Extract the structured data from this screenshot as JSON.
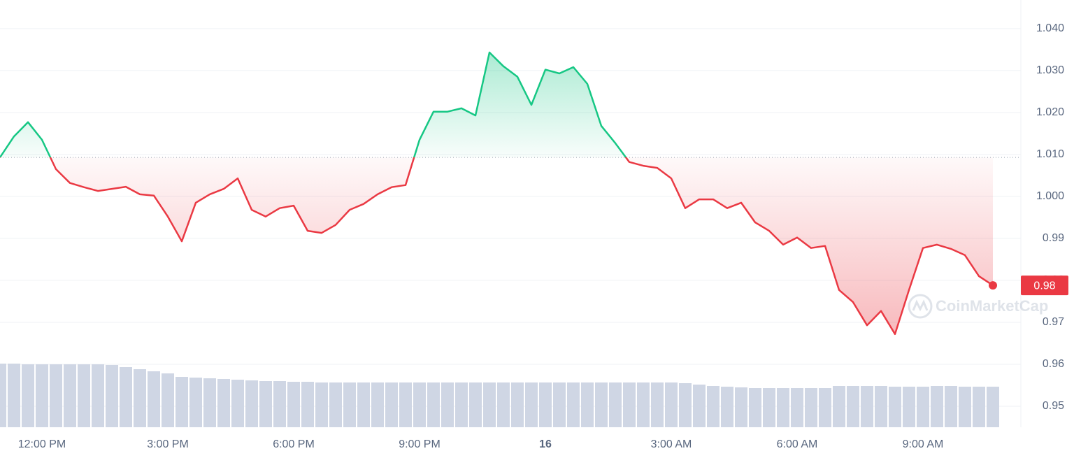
{
  "chart_data": {
    "type": "line",
    "x": [
      "11:00 AM",
      "11:20 AM",
      "11:40 AM",
      "12:00 PM",
      "12:20 PM",
      "12:40 PM",
      "1:00 PM",
      "1:20 PM",
      "1:40 PM",
      "2:00 PM",
      "2:20 PM",
      "2:40 PM",
      "3:00 PM",
      "3:20 PM",
      "3:40 PM",
      "4:00 PM",
      "4:20 PM",
      "4:40 PM",
      "5:00 PM",
      "5:20 PM",
      "5:40 PM",
      "6:00 PM",
      "6:20 PM",
      "6:40 PM",
      "7:00 PM",
      "7:20 PM",
      "7:40 PM",
      "8:00 PM",
      "8:20 PM",
      "8:40 PM",
      "9:00 PM",
      "9:20 PM",
      "9:40 PM",
      "10:00 PM",
      "10:20 PM",
      "10:40 PM",
      "11:00 PM",
      "11:20 PM",
      "11:40 PM",
      "12:00 AM",
      "12:20 AM",
      "12:40 AM",
      "1:00 AM",
      "1:20 AM",
      "1:40 AM",
      "2:00 AM",
      "2:20 AM",
      "2:40 AM",
      "3:00 AM",
      "3:20 AM",
      "3:40 AM",
      "4:00 AM",
      "4:20 AM",
      "4:40 AM",
      "5:00 AM",
      "5:20 AM",
      "5:40 AM",
      "6:00 AM",
      "6:20 AM",
      "6:40 AM",
      "7:00 AM",
      "7:20 AM",
      "7:40 AM",
      "8:00 AM",
      "8:20 AM",
      "8:40 AM",
      "9:00 AM",
      "9:20 AM",
      "9:40 AM",
      "10:00 AM",
      "10:20 AM",
      "10:40 AM"
    ],
    "values": [
      1.0093,
      1.0143,
      1.0177,
      1.0135,
      1.0065,
      1.0032,
      1.0022,
      1.0013,
      1.0018,
      1.0023,
      1.0005,
      1.0002,
      0.9952,
      0.9893,
      0.9985,
      1.0005,
      1.0018,
      1.0043,
      0.9968,
      0.9952,
      0.9972,
      0.9978,
      0.9918,
      0.9913,
      0.9932,
      0.9968,
      0.9982,
      1.0005,
      1.0022,
      1.0027,
      1.0135,
      1.0202,
      1.0202,
      1.021,
      1.0193,
      1.0343,
      1.031,
      1.0285,
      1.0218,
      1.0302,
      1.0293,
      1.0308,
      1.0268,
      1.0168,
      1.0127,
      1.0082,
      1.0073,
      1.0068,
      1.0043,
      0.9972,
      0.9993,
      0.9993,
      0.9972,
      0.9985,
      0.9938,
      0.9918,
      0.9885,
      0.9902,
      0.9877,
      0.9882,
      0.9777,
      0.9748,
      0.9693,
      0.9727,
      0.9672,
      0.9777,
      0.9877,
      0.9885,
      0.9875,
      0.986,
      0.981,
      0.9788
    ],
    "volume": [
      91,
      91,
      90,
      90,
      90,
      90,
      90,
      90,
      89,
      86,
      83,
      80,
      77,
      72,
      71,
      70,
      69,
      68,
      67,
      66,
      66,
      65,
      65,
      64,
      64,
      64,
      64,
      64,
      64,
      64,
      64,
      64,
      64,
      64,
      64,
      64,
      64,
      64,
      64,
      64,
      64,
      64,
      64,
      64,
      64,
      64,
      64,
      64,
      64,
      63,
      61,
      59,
      58,
      57,
      56,
      56,
      56,
      56,
      56,
      56,
      59,
      59,
      59,
      59,
      58,
      58,
      58,
      59,
      59,
      58,
      58,
      58
    ],
    "baseline": 1.0093,
    "last_value_label": "0.98",
    "color_up": "#16c784",
    "color_down": "#ea3943",
    "volume_color": "#cfd6e4",
    "ylim": [
      0.945,
      1.0468
    ],
    "yticks": [
      {
        "value": 1.04,
        "label": "1.040"
      },
      {
        "value": 1.03,
        "label": "1.030"
      },
      {
        "value": 1.02,
        "label": "1.020"
      },
      {
        "value": 1.01,
        "label": "1.010"
      },
      {
        "value": 1,
        "label": "1.000"
      },
      0.99,
      0.98,
      0.97,
      0.96,
      0.95
    ],
    "xticks": [
      {
        "value": "12:00 PM",
        "label": "12:00 PM"
      },
      {
        "value": "3:00 PM",
        "label": "3:00 PM"
      },
      {
        "value": "6:00 PM",
        "label": "6:00 PM"
      },
      {
        "value": "9:00 PM",
        "label": "9:00 PM"
      },
      {
        "value": "12:00 AM",
        "label": "16"
      },
      {
        "value": "3:00 AM",
        "label": "3:00 AM"
      },
      {
        "value": "6:00 AM",
        "label": "6:00 AM"
      },
      {
        "value": "9:00 AM",
        "label": "9:00 AM"
      }
    ],
    "grid": true,
    "watermark": "CoinMarketCap"
  }
}
